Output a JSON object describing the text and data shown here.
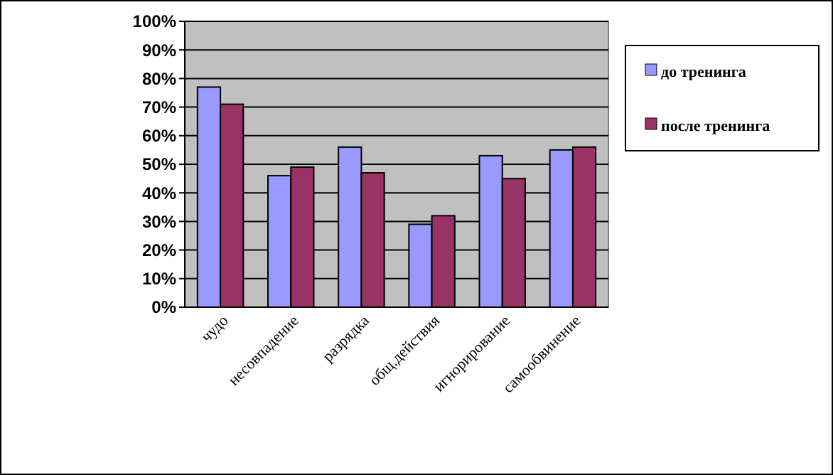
{
  "chart_data": {
    "type": "bar",
    "categories": [
      "чудо",
      "несовпадение",
      "разрядка",
      "общ.действия",
      "игнорирование",
      "самообвинение"
    ],
    "series": [
      {
        "name": "до тренинга",
        "color": "#9999ff",
        "values": [
          77,
          46,
          56,
          29,
          53,
          55
        ]
      },
      {
        "name": "после тренинга",
        "color": "#993366",
        "values": [
          71,
          49,
          47,
          32,
          45,
          56
        ]
      }
    ],
    "ylim": [
      0,
      100
    ],
    "yticks": [
      {
        "value": 0,
        "label": "0%"
      },
      {
        "value": 10,
        "label": "10%"
      },
      {
        "value": 20,
        "label": "20%"
      },
      {
        "value": 30,
        "label": "30%"
      },
      {
        "value": 40,
        "label": "40%"
      },
      {
        "value": 50,
        "label": "50%"
      },
      {
        "value": 60,
        "label": "60%"
      },
      {
        "value": 70,
        "label": "70%"
      },
      {
        "value": 80,
        "label": "80%"
      },
      {
        "value": 90,
        "label": "90%"
      },
      {
        "value": 100,
        "label": "100%"
      }
    ],
    "grid": "y",
    "legend": "right"
  }
}
